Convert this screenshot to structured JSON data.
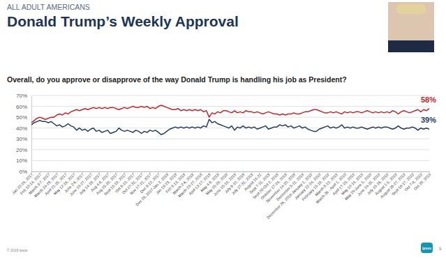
{
  "chart_data": {
    "type": "line",
    "title": "Donald Trump’s Weekly Approval",
    "subtitle": "Overall, do you approve or disapprove of the way Donald Trump is handling his job as President?",
    "categories": [
      "Jan 20-24, 2017",
      null,
      null,
      "Feb 10-14, 2017",
      null,
      null,
      "March 3-7, 2017",
      null,
      null,
      "March 24-28, 2017",
      null,
      null,
      "April 21-25, 2017",
      null,
      null,
      "May 12-16, 2017",
      null,
      null,
      "June 2-6, 2017",
      null,
      null,
      "June 23-27, 2017",
      null,
      null,
      "July 14-18, 2017",
      null,
      null,
      "Aug 4-8, 2017",
      null,
      null,
      "Aug 25-29, 2017",
      null,
      null,
      "Sept 15-19, 2017",
      null,
      null,
      "Oct 6-10, 2017",
      null,
      null,
      "Oct 27-31, 2017",
      null,
      null,
      "Nov 17-21, 2017",
      null,
      null,
      "Dec 8-12, 2017",
      null,
      null,
      "Dec 29, 2017-Jan 2, 2018",
      null,
      null,
      "Jan 19-23, 2018",
      null,
      null,
      "Feb 9-13, 2018",
      null,
      null,
      "March 2-6, 2018",
      null,
      null,
      "March 23-27, 2018",
      null,
      null,
      "April 13-17, 2018",
      null,
      null,
      "May 4-8, 2018",
      null,
      null,
      "May 25-29, 2018",
      null,
      null,
      "June 15-19, 2018",
      null,
      null,
      "July 6-10, 2018",
      null,
      null,
      "July 27-31, 2018",
      null,
      null,
      "August 15-21",
      null,
      null,
      "Sept 7-11, 2018",
      null,
      null,
      "Sept 28-Oct 2, 2018",
      null,
      null,
      "October 17-24, 2018",
      null,
      null,
      "November 14-20, 2018",
      null,
      null,
      "December 5-11, 2018",
      null,
      null,
      "December 26, 2018-January 1, 2019",
      null,
      null,
      "January 22-24, 2019",
      null,
      null,
      "February 15-19, 2019",
      null,
      null,
      "March 8-12, 2019",
      null,
      null,
      "March 26 - April 1, 2019",
      null,
      null,
      "April 17-23, 2019",
      null,
      null,
      "May 10-14, 2019",
      null,
      null,
      "May 29-June 5, 2019",
      null,
      null,
      "June 24-25, 2019",
      null,
      null,
      "July 15-16, 2019",
      null,
      null,
      "August 1-5, 2019",
      null,
      null,
      "August 26-27, 2019",
      null,
      null,
      "Sept 16-17, 2019",
      null,
      null,
      "Oct 7-8, 2019",
      null,
      null,
      "Oct 29, 2019"
    ],
    "series": [
      {
        "color": "#c1272d",
        "values": [
          45,
          47,
          49,
          50,
          49,
          48,
          49,
          50,
          50,
          52,
          53,
          52,
          54,
          53,
          55,
          56,
          57,
          56,
          57,
          58,
          57,
          58,
          59,
          58,
          59,
          58,
          59,
          58,
          59,
          59,
          58,
          57,
          58,
          59,
          58,
          59,
          60,
          59,
          59,
          60,
          59,
          60,
          58,
          59,
          58,
          60,
          61,
          60,
          59,
          58,
          57,
          57,
          58,
          56,
          57,
          56,
          57,
          56,
          57,
          56,
          57,
          55,
          56,
          50,
          54,
          53,
          55,
          54,
          56,
          56,
          55,
          54,
          56,
          54,
          55,
          54,
          56,
          55,
          55,
          54,
          55,
          54,
          53,
          54,
          55,
          54,
          53,
          53,
          52,
          53,
          52,
          53,
          53,
          54,
          53,
          53,
          54,
          55,
          55,
          56,
          57,
          57,
          56,
          55,
          54,
          54,
          55,
          54,
          55,
          54,
          53,
          55,
          54,
          55,
          54,
          55,
          55,
          54,
          55,
          56,
          55,
          54,
          55,
          54,
          55,
          54,
          55,
          54,
          56,
          55,
          53,
          55,
          56,
          55,
          54,
          55,
          56,
          57,
          55,
          57,
          56,
          58
        ],
        "value_labels": [
          null,
          null,
          null,
          null,
          null,
          null,
          null,
          null,
          null,
          null,
          null,
          null,
          null,
          null,
          null,
          null,
          null,
          null,
          null,
          null,
          null,
          null,
          null,
          null,
          null,
          null,
          null,
          null,
          null,
          null,
          null,
          null,
          null,
          null,
          null,
          null,
          null,
          null,
          null,
          null,
          null,
          null,
          null,
          null,
          null,
          null,
          null,
          null,
          null,
          null,
          null,
          null,
          null,
          null,
          null,
          null,
          null,
          null,
          null,
          null,
          null,
          null,
          null,
          null,
          null,
          null,
          null,
          null,
          null,
          null,
          null,
          null,
          null,
          null,
          null,
          null,
          null,
          null,
          null,
          null,
          null,
          null,
          null,
          null,
          null,
          null,
          null,
          null,
          null,
          null,
          null,
          null,
          null,
          null,
          null,
          null,
          null,
          null,
          null,
          null,
          null,
          null,
          null,
          null,
          null,
          null,
          null,
          null,
          null,
          null,
          null,
          null,
          null,
          null,
          null,
          null,
          null,
          null,
          null,
          null,
          null,
          null,
          null,
          null,
          null,
          null,
          null,
          null,
          null,
          null,
          null,
          null,
          null,
          null,
          null,
          null,
          null,
          null,
          null,
          null,
          null,
          "58%"
        ]
      },
      {
        "color": "#263c5e",
        "values": [
          43,
          45,
          46,
          47,
          46,
          46,
          45,
          46,
          44,
          42,
          43,
          41,
          42,
          44,
          42,
          41,
          38,
          40,
          38,
          39,
          37,
          39,
          40,
          37,
          38,
          36,
          37,
          38,
          35,
          36,
          37,
          40,
          38,
          37,
          38,
          37,
          36,
          38,
          37,
          35,
          37,
          36,
          38,
          37,
          38,
          36,
          34,
          35,
          37,
          39,
          40,
          41,
          40,
          41,
          40,
          41,
          40,
          41,
          40,
          41,
          40,
          42,
          41,
          48,
          45,
          46,
          44,
          43,
          42,
          41,
          40,
          42,
          38,
          41,
          40,
          42,
          40,
          41,
          40,
          41,
          39,
          40,
          41,
          42,
          39,
          40,
          41,
          41,
          43,
          42,
          43,
          41,
          42,
          40,
          41,
          42,
          40,
          41,
          39,
          38,
          37,
          37,
          39,
          40,
          41,
          42,
          40,
          41,
          40,
          41,
          43,
          40,
          41,
          40,
          41,
          40,
          40,
          41,
          40,
          39,
          40,
          41,
          40,
          41,
          40,
          41,
          41,
          40,
          39,
          40,
          42,
          40,
          39,
          40,
          40,
          41,
          40,
          38,
          40,
          39,
          40,
          39
        ],
        "value_labels": [
          null,
          null,
          null,
          null,
          null,
          null,
          null,
          null,
          null,
          null,
          null,
          null,
          null,
          null,
          null,
          null,
          null,
          null,
          null,
          null,
          null,
          null,
          null,
          null,
          null,
          null,
          null,
          null,
          null,
          null,
          null,
          null,
          null,
          null,
          null,
          null,
          null,
          null,
          null,
          null,
          null,
          null,
          null,
          null,
          null,
          null,
          null,
          null,
          null,
          null,
          null,
          null,
          null,
          null,
          null,
          null,
          null,
          null,
          null,
          null,
          null,
          null,
          null,
          null,
          null,
          null,
          null,
          null,
          null,
          null,
          null,
          null,
          null,
          null,
          null,
          null,
          null,
          null,
          null,
          null,
          null,
          null,
          null,
          null,
          null,
          null,
          null,
          null,
          null,
          null,
          null,
          null,
          null,
          null,
          null,
          null,
          null,
          null,
          null,
          null,
          null,
          null,
          null,
          null,
          null,
          null,
          null,
          null,
          null,
          null,
          null,
          null,
          null,
          null,
          null,
          null,
          null,
          null,
          null,
          null,
          null,
          null,
          null,
          null,
          null,
          null,
          null,
          null,
          null,
          null,
          null,
          null,
          null,
          null,
          null,
          null,
          null,
          null,
          null,
          null,
          null,
          "39%"
        ]
      }
    ],
    "ylim": [
      0,
      70
    ],
    "yticks": [
      {
        "value": 0,
        "label": "0%"
      },
      {
        "value": 10,
        "label": "10%"
      },
      {
        "value": 20,
        "label": "20%"
      },
      {
        "value": 30,
        "label": "30%"
      },
      {
        "value": 40,
        "label": "40%"
      },
      {
        "value": 50,
        "label": "50%"
      },
      {
        "value": 60,
        "label": "60%"
      },
      {
        "value": 70,
        "label": "70%"
      }
    ],
    "grid": true
  },
  "page": {
    "kicker": "ALL ADULT AMERICANS",
    "footer": "© 2019 Ipsos",
    "page_number": 9,
    "logo": "ipsos"
  }
}
